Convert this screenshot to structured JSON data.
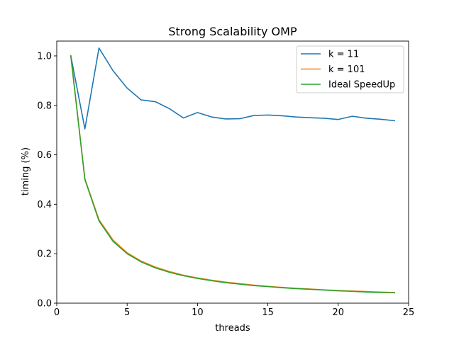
{
  "chart_data": {
    "type": "line",
    "title": "Strong Scalability OMP",
    "xlabel": "threads",
    "ylabel": "timing (%)",
    "xlim": [
      0,
      25
    ],
    "ylim": [
      0,
      1.06
    ],
    "x_ticks": [
      0,
      5,
      10,
      15,
      20,
      25
    ],
    "y_ticks": [
      0.0,
      0.2,
      0.4,
      0.6,
      0.8,
      1.0
    ],
    "x_tick_labels": [
      "0",
      "5",
      "10",
      "15",
      "20",
      "25"
    ],
    "y_tick_labels": [
      "0.0",
      "0.2",
      "0.4",
      "0.6",
      "0.8",
      "1.0"
    ],
    "legend_position": "top-right",
    "grid": false,
    "x": [
      1,
      2,
      3,
      4,
      5,
      6,
      7,
      8,
      9,
      10,
      11,
      12,
      13,
      14,
      15,
      16,
      17,
      18,
      19,
      20,
      21,
      22,
      23,
      24
    ],
    "series": [
      {
        "name": "k = 11",
        "color": "#1f77b4",
        "values": [
          1.0,
          0.705,
          1.032,
          0.94,
          0.87,
          0.822,
          0.815,
          0.787,
          0.749,
          0.771,
          0.753,
          0.745,
          0.746,
          0.759,
          0.761,
          0.758,
          0.753,
          0.75,
          0.748,
          0.743,
          0.756,
          0.748,
          0.744,
          0.738
        ]
      },
      {
        "name": "k = 101",
        "color": "#ff7f0e",
        "values": [
          1.0,
          0.503,
          0.338,
          0.255,
          0.204,
          0.17,
          0.146,
          0.128,
          0.113,
          0.102,
          0.093,
          0.085,
          0.079,
          0.073,
          0.068,
          0.064,
          0.06,
          0.057,
          0.054,
          0.051,
          0.049,
          0.047,
          0.045,
          0.043
        ]
      },
      {
        "name": "Ideal SpeedUp",
        "color": "#2ca02c",
        "values": [
          1.0,
          0.5,
          0.333,
          0.25,
          0.2,
          0.167,
          0.143,
          0.125,
          0.111,
          0.1,
          0.091,
          0.083,
          0.077,
          0.071,
          0.067,
          0.0625,
          0.059,
          0.056,
          0.053,
          0.05,
          0.048,
          0.045,
          0.043,
          0.042
        ]
      }
    ]
  }
}
